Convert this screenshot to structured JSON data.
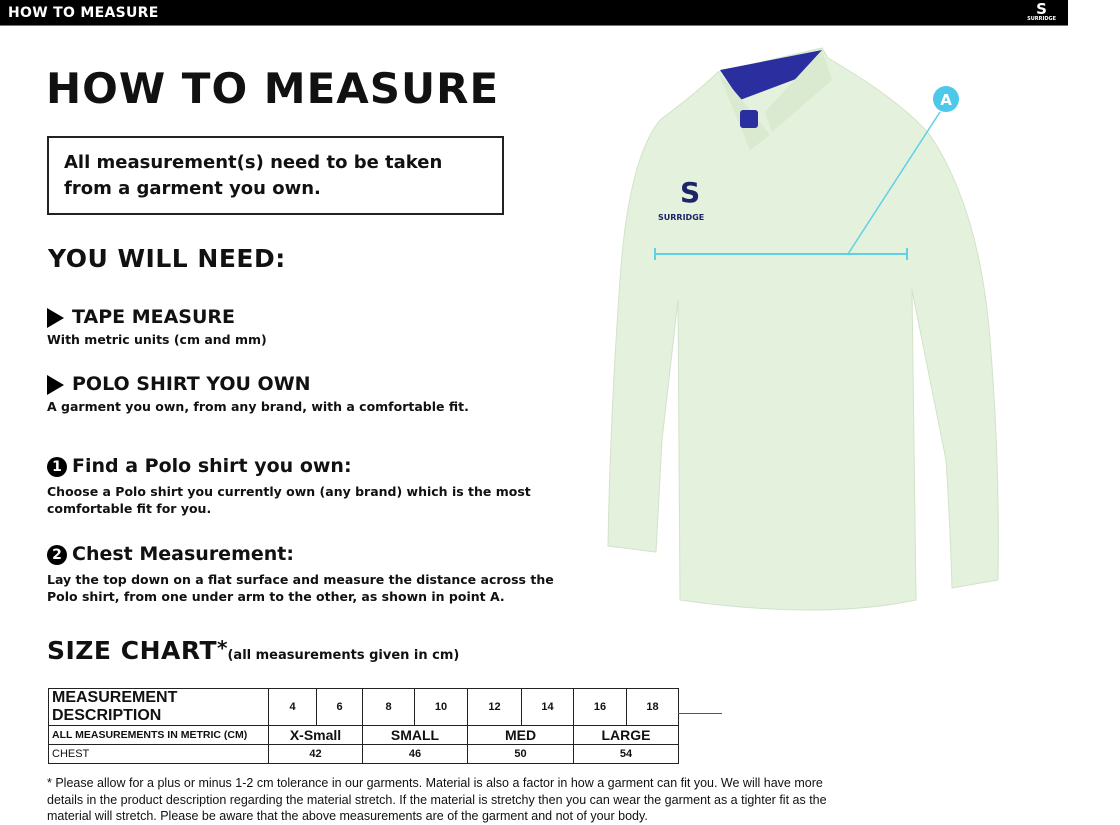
{
  "header": {
    "title": "HOW TO MEASURE",
    "brand": "SURRIDGE"
  },
  "page_title": "HOW TO MEASURE",
  "notice": "All measurement(s) need to be taken from a garment you own.",
  "need": {
    "heading": "YOU WILL NEED:",
    "items": [
      {
        "title": "TAPE MEASURE",
        "desc": "With metric units (cm and mm)"
      },
      {
        "title": "POLO SHIRT YOU OWN",
        "desc": "A garment you own, from any brand, with a comfortable fit."
      }
    ]
  },
  "steps": [
    {
      "num": "1",
      "title": "Find a Polo shirt you own:",
      "desc": "Choose a Polo shirt you currently own (any brand) which is the most comfortable fit for you."
    },
    {
      "num": "2",
      "title": "Chest Measurement:",
      "desc": "Lay the top down on a flat surface and measure the distance across the Polo shirt, from one under arm to the other, as shown in point A."
    }
  ],
  "size_chart": {
    "heading": "SIZE CHART",
    "asterisk": "*",
    "note": "(all measurements given in cm)",
    "row1": {
      "label": "MEASUREMENT DESCRIPTION",
      "sizes": [
        "4",
        "6",
        "8",
        "10",
        "12",
        "14",
        "16",
        "18"
      ]
    },
    "row2": {
      "label": "ALL MEASUREMENTS IN METRIC (CM)",
      "groups": [
        "X-Small",
        "SMALL",
        "MED",
        "LARGE"
      ]
    },
    "row3": {
      "label": "CHEST",
      "values": [
        "42",
        "46",
        "50",
        "54"
      ]
    }
  },
  "footnote": "* Please allow for a plus or minus 1-2 cm tolerance in our garments. Material is also a factor in how a garment can fit you. We will have more details in the product description regarding the material stretch.  If the material is stretchy then you can wear the garment as a tighter fit as the material will stretch.  Please be aware that the above measurements are of the garment and not of your body.",
  "image": {
    "marker": "A",
    "chest_logo": "SURRIDGE",
    "colors": {
      "shirt": "#e4f1dc",
      "collar": "#2b2e9e",
      "measure_line": "#5fd0e6"
    }
  }
}
